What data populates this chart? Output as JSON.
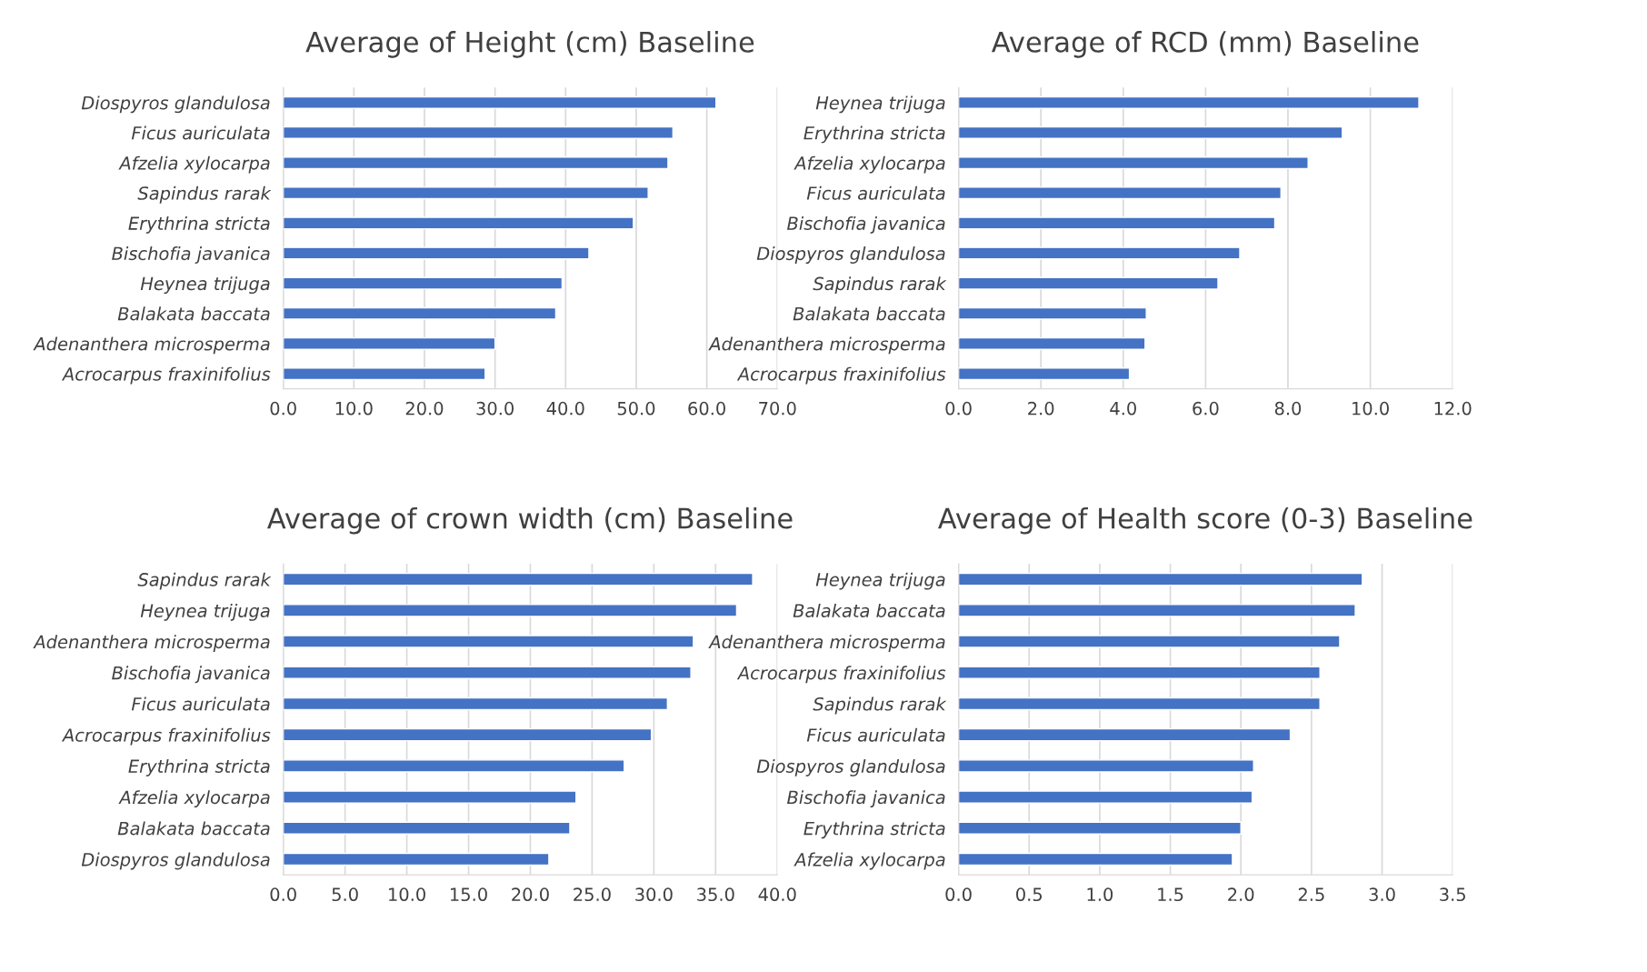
{
  "chart_data": [
    {
      "type": "bar",
      "orientation": "horizontal",
      "title": "Average of Height (cm) Baseline",
      "categories": [
        "Diospyros glandulosa",
        "Ficus auriculata",
        "Afzelia xylocarpa",
        "Sapindus rarak",
        "Erythrina stricta",
        "Bischofia javanica",
        "Heynea trijuga",
        "Balakata baccata",
        "Adenanthera microsperma",
        "Acrocarpus fraxinifolius"
      ],
      "values": [
        61.3,
        55.2,
        54.5,
        51.7,
        49.6,
        43.3,
        39.5,
        38.6,
        30.0,
        28.6
      ],
      "color": "#4472c4",
      "xlim": [
        0,
        70
      ],
      "xticks": [
        {
          "value": 0,
          "label": "0.0"
        },
        {
          "value": 10,
          "label": "10.0"
        },
        {
          "value": 20,
          "label": "20.0"
        },
        {
          "value": 30,
          "label": "30.0"
        },
        {
          "value": 40,
          "label": "40.0"
        },
        {
          "value": 50,
          "label": "50.0"
        },
        {
          "value": 60,
          "label": "60.0"
        },
        {
          "value": 70,
          "label": "70.0"
        }
      ],
      "grid": "x"
    },
    {
      "type": "bar",
      "orientation": "horizontal",
      "title": "Average of RCD (mm) Baseline",
      "categories": [
        "Heynea trijuga",
        "Erythrina stricta",
        "Afzelia xylocarpa",
        "Ficus auriculata",
        "Bischofia javanica",
        "Diospyros glandulosa",
        "Sapindus rarak",
        "Balakata baccata",
        "Adenanthera microsperma",
        "Acrocarpus fraxinifolius"
      ],
      "values": [
        11.18,
        9.32,
        8.49,
        7.83,
        7.68,
        6.83,
        6.3,
        4.56,
        4.53,
        4.15
      ],
      "color": "#4472c4",
      "xlim": [
        0,
        12
      ],
      "xticks": [
        {
          "value": 0,
          "label": "0.0"
        },
        {
          "value": 2,
          "label": "2.0"
        },
        {
          "value": 4,
          "label": "4.0"
        },
        {
          "value": 6,
          "label": "6.0"
        },
        {
          "value": 8,
          "label": "8.0"
        },
        {
          "value": 10,
          "label": "10.0"
        },
        {
          "value": 12,
          "label": "12.0"
        }
      ],
      "grid": "x"
    },
    {
      "type": "bar",
      "orientation": "horizontal",
      "title": "Average of crown width (cm) Baseline",
      "categories": [
        "Sapindus rarak",
        "Heynea trijuga",
        "Adenanthera microsperma",
        "Bischofia javanica",
        "Ficus auriculata",
        "Acrocarpus fraxinifolius",
        "Erythrina stricta",
        "Afzelia xylocarpa",
        "Balakata baccata",
        "Diospyros glandulosa"
      ],
      "values": [
        38.0,
        36.7,
        33.2,
        33.0,
        31.1,
        29.8,
        27.6,
        23.7,
        23.2,
        21.5
      ],
      "color": "#4472c4",
      "xlim": [
        0,
        40
      ],
      "xticks": [
        {
          "value": 0,
          "label": "0.0"
        },
        {
          "value": 5,
          "label": "5.0"
        },
        {
          "value": 10,
          "label": "10.0"
        },
        {
          "value": 15,
          "label": "15.0"
        },
        {
          "value": 20,
          "label": "20.0"
        },
        {
          "value": 25,
          "label": "25.0"
        },
        {
          "value": 30,
          "label": "30.0"
        },
        {
          "value": 35,
          "label": "35.0"
        },
        {
          "value": 40,
          "label": "40.0"
        }
      ],
      "grid": "x"
    },
    {
      "type": "bar",
      "orientation": "horizontal",
      "title": "Average of Health score (0-3) Baseline",
      "categories": [
        "Heynea trijuga",
        "Balakata baccata",
        "Adenanthera microsperma",
        "Acrocarpus fraxinifolius",
        "Sapindus rarak",
        "Ficus auriculata",
        "Diospyros glandulosa",
        "Bischofia javanica",
        "Erythrina stricta",
        "Afzelia xylocarpa"
      ],
      "values": [
        2.86,
        2.81,
        2.7,
        2.56,
        2.56,
        2.35,
        2.09,
        2.08,
        2.0,
        1.94
      ],
      "color": "#4472c4",
      "xlim": [
        0,
        3.5
      ],
      "xticks": [
        {
          "value": 0,
          "label": "0.0"
        },
        {
          "value": 0.5,
          "label": "0.5"
        },
        {
          "value": 1,
          "label": "1.0"
        },
        {
          "value": 1.5,
          "label": "1.5"
        },
        {
          "value": 2,
          "label": "2.0"
        },
        {
          "value": 2.5,
          "label": "2.5"
        },
        {
          "value": 3,
          "label": "3.0"
        },
        {
          "value": 3.5,
          "label": "3.5"
        }
      ],
      "grid": "x"
    }
  ]
}
